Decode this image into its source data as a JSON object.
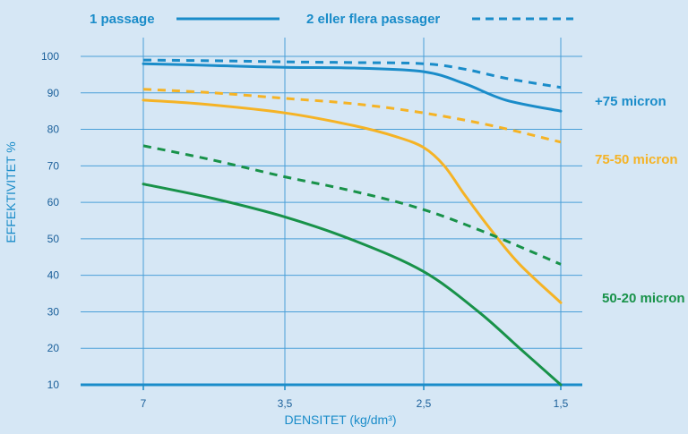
{
  "chart_data": {
    "type": "line",
    "xlabel": "DENSITET (kg/dm³)",
    "ylabel": "EFFEKTIVITET %",
    "x_categories": [
      "7",
      "3,5",
      "2,5",
      "1,5"
    ],
    "yticks": [
      10,
      20,
      30,
      40,
      50,
      60,
      70,
      80,
      90,
      100
    ],
    "ylim": [
      10,
      100
    ],
    "grid": true,
    "legend": [
      {
        "label": "1 passage",
        "style": "solid"
      },
      {
        "label": "2 eller flera passager",
        "style": "dashed"
      }
    ],
    "groups": [
      {
        "label": "+75 micron",
        "color": "#1a8cc9",
        "series": [
          {
            "name": "1 passage",
            "style": "solid",
            "points": [
              [
                0,
                98
              ],
              [
                0.5,
                97.5
              ],
              [
                1,
                97
              ],
              [
                1.5,
                96.8
              ],
              [
                2,
                95.8
              ],
              [
                2.3,
                92.5
              ],
              [
                2.6,
                88
              ],
              [
                3,
                85
              ]
            ]
          },
          {
            "name": "2 eller flera passager",
            "style": "dashed",
            "points": [
              [
                0,
                99
              ],
              [
                0.5,
                98.8
              ],
              [
                1,
                98.5
              ],
              [
                1.5,
                98.3
              ],
              [
                2,
                98
              ],
              [
                2.3,
                96.5
              ],
              [
                2.6,
                94
              ],
              [
                3,
                91.5
              ]
            ]
          }
        ]
      },
      {
        "label": "75-50  micron",
        "color": "#f5b325",
        "series": [
          {
            "name": "1 passage",
            "style": "solid",
            "points": [
              [
                0,
                88
              ],
              [
                0.4,
                87
              ],
              [
                1,
                84.5
              ],
              [
                1.5,
                81
              ],
              [
                1.8,
                78
              ],
              [
                2,
                75
              ],
              [
                2.15,
                70
              ],
              [
                2.3,
                62
              ],
              [
                2.5,
                52
              ],
              [
                2.7,
                43
              ],
              [
                3,
                32.5
              ]
            ]
          },
          {
            "name": "2 eller flera passager",
            "style": "dashed",
            "points": [
              [
                0,
                91
              ],
              [
                0.5,
                90
              ],
              [
                1,
                88.5
              ],
              [
                1.5,
                87
              ],
              [
                2,
                84.5
              ],
              [
                2.5,
                81
              ],
              [
                3,
                76.5
              ]
            ]
          }
        ]
      },
      {
        "label": "50-20  micron",
        "color": "#189249",
        "series": [
          {
            "name": "1 passage",
            "style": "solid",
            "points": [
              [
                0,
                65
              ],
              [
                0.5,
                61
              ],
              [
                1,
                56
              ],
              [
                1.5,
                49.5
              ],
              [
                2,
                41
              ],
              [
                2.4,
                30
              ],
              [
                2.7,
                20
              ],
              [
                3,
                10
              ]
            ]
          },
          {
            "name": "2 eller flera passager",
            "style": "dashed",
            "points": [
              [
                0,
                75.5
              ],
              [
                0.5,
                71.5
              ],
              [
                1,
                67
              ],
              [
                1.5,
                63
              ],
              [
                2,
                58
              ],
              [
                2.5,
                51
              ],
              [
                3,
                43
              ]
            ]
          }
        ]
      }
    ]
  }
}
